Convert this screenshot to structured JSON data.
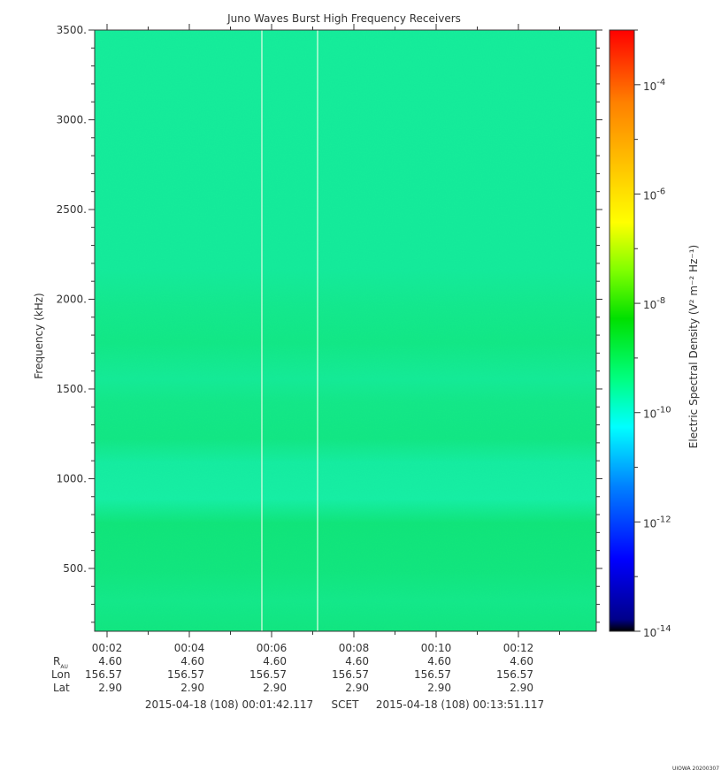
{
  "chart_data": {
    "type": "heatmap",
    "title": "Juno Waves Burst High Frequency Receivers",
    "ylabel": "Frequency (kHz)",
    "ylim": [
      150,
      3500
    ],
    "y_ticks": [
      {
        "value": 500,
        "label": "500."
      },
      {
        "value": 1000,
        "label": "1000."
      },
      {
        "value": 1500,
        "label": "1500."
      },
      {
        "value": 2000,
        "label": "2000."
      },
      {
        "value": 2500,
        "label": "2500."
      },
      {
        "value": 3000,
        "label": "3000."
      },
      {
        "value": 3500,
        "label": "3500."
      }
    ],
    "x_ticks": [
      "00:02",
      "00:04",
      "00:06",
      "00:08",
      "00:10",
      "00:12"
    ],
    "ephemeris": {
      "row_labels": {
        "r_main": "R",
        "r_sub": "AU",
        "lon": "Lon",
        "lat": "Lat"
      },
      "R_AU": [
        "4.60",
        "4.60",
        "4.60",
        "4.60",
        "4.60",
        "4.60"
      ],
      "Lon": [
        "156.57",
        "156.57",
        "156.57",
        "156.57",
        "156.57",
        "156.57"
      ],
      "Lat": [
        "2.90",
        "2.90",
        "2.90",
        "2.90",
        "2.90",
        "2.90"
      ]
    },
    "time_range": {
      "start": "2015-04-18 (108) 00:01:42.117",
      "label": "SCET",
      "end": "2015-04-18 (108) 00:13:51.117"
    },
    "colorbar": {
      "label": "Electric Spectral Density (V² m⁻² Hz⁻¹)",
      "scale": "log",
      "range": [
        1e-14,
        0.001
      ],
      "colors": [
        "#000000",
        "#00008b",
        "#0000ff",
        "#0080ff",
        "#00ffff",
        "#00ff80",
        "#00e000",
        "#80ff00",
        "#ffff00",
        "#ffc000",
        "#ff8000",
        "#ff0000"
      ],
      "ticks": [
        {
          "base": "10",
          "exp": "-14"
        },
        {
          "base": "10",
          "exp": "-12"
        },
        {
          "base": "10",
          "exp": "-10"
        },
        {
          "base": "10",
          "exp": "-8"
        },
        {
          "base": "10",
          "exp": "-6"
        },
        {
          "base": "10",
          "exp": "-4"
        }
      ]
    },
    "data_level_log10": -10,
    "band_pattern": "alternating green and cyan-green bands, greener near 150-400, 600-850, 1150-1550, 1700-1900 kHz; cyan near 900-1100 and 2000-3500 kHz",
    "gap_times": [
      "00:05:45",
      "00:07:05"
    ],
    "footer": "UIOWA 20200307"
  }
}
